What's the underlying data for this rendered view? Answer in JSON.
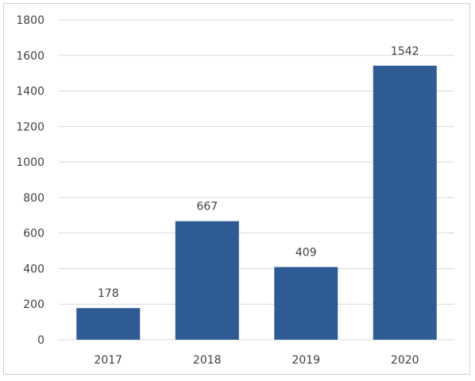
{
  "chart_data": {
    "type": "bar",
    "categories": [
      "2017",
      "2018",
      "2019",
      "2020"
    ],
    "values": [
      178,
      667,
      409,
      1542
    ],
    "ylim": [
      0,
      1800
    ],
    "yticks": [
      0,
      200,
      400,
      600,
      800,
      1000,
      1200,
      1400,
      1600,
      1800
    ],
    "data_labels": [
      "178",
      "667",
      "409",
      "1542"
    ],
    "grid": true,
    "legend": "none",
    "bar_color": "#2f5b95",
    "grid_color": "#d9d9d9"
  }
}
